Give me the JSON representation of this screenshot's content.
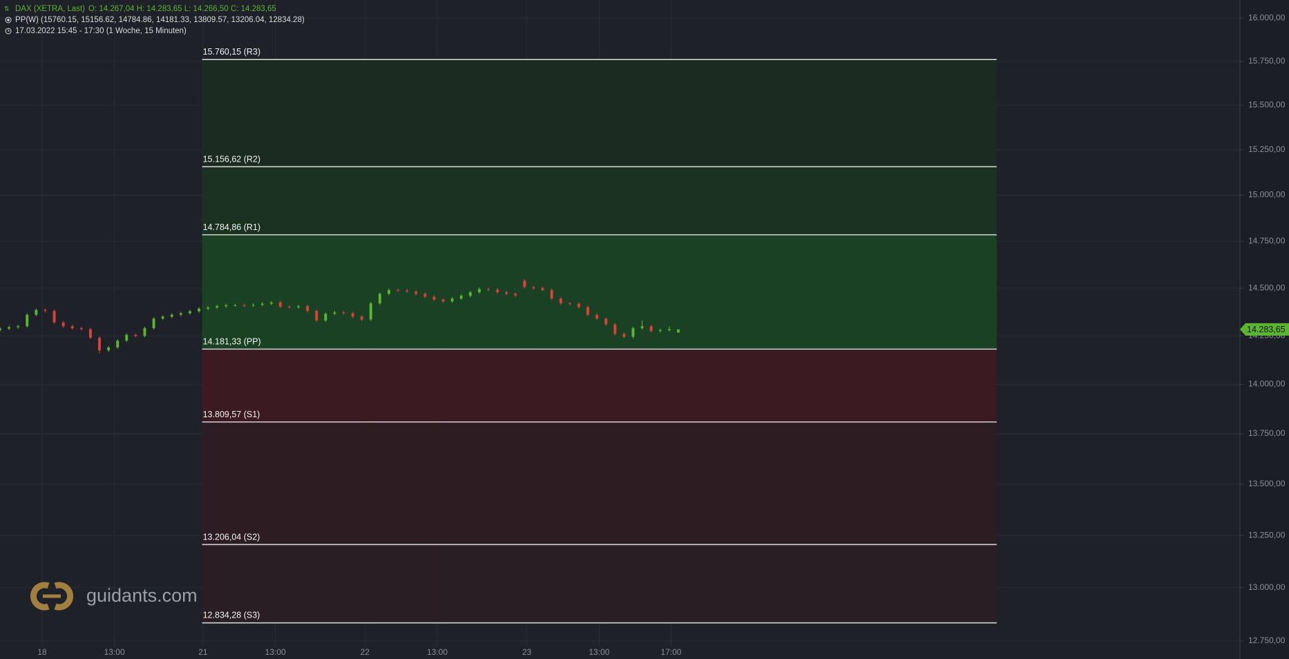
{
  "chart_data": {
    "type": "candlestick",
    "title": "DAX (XETRA, Last)",
    "ohlc_text": "O: 14.267,04  H: 14.283,65  L: 14.266,50  C: 14.283,65",
    "indicator_text": "PP(W)  (15760.15, 15156.62, 14784.86, 14181.33, 13809.57, 13206.04, 12834.28)",
    "period_text": "17.03.2022 15:45 - 17:30   (1 Woche, 15 Minuten)",
    "watermark": "guidants.com",
    "log_scale": true,
    "grid": true,
    "up_color": "#5cb531",
    "down_color": "#d9433b",
    "xlim": [
      0,
      274.2
    ],
    "ylim": [
      12724,
      16106
    ],
    "xticks": [
      {
        "value": 9.3,
        "label": "18"
      },
      {
        "value": 25.3,
        "label": "13:00"
      },
      {
        "value": 44.9,
        "label": "21"
      },
      {
        "value": 60.9,
        "label": "13:00"
      },
      {
        "value": 80.7,
        "label": "22"
      },
      {
        "value": 96.7,
        "label": "13:00"
      },
      {
        "value": 116.5,
        "label": "23"
      },
      {
        "value": 132.5,
        "label": "13:00"
      },
      {
        "value": 148.4,
        "label": "17:00"
      }
    ],
    "yticks": [
      {
        "value": 16000,
        "label": "16.000,00"
      },
      {
        "value": 15750,
        "label": "15.750,00"
      },
      {
        "value": 15500,
        "label": "15.500,00"
      },
      {
        "value": 15250,
        "label": "15.250,00"
      },
      {
        "value": 15000,
        "label": "15.000,00"
      },
      {
        "value": 14750,
        "label": "14.750,00"
      },
      {
        "value": 14500,
        "label": "14.500,00"
      },
      {
        "value": 14250,
        "label": "14.250,00"
      },
      {
        "value": 14000,
        "label": "14.000,00"
      },
      {
        "value": 13750,
        "label": "13.750,00"
      },
      {
        "value": 13500,
        "label": "13.500,00"
      },
      {
        "value": 13250,
        "label": "13.250,00"
      },
      {
        "value": 13000,
        "label": "13.000,00"
      },
      {
        "value": 12750,
        "label": "12.750,00"
      }
    ],
    "x": [
      0,
      2,
      4,
      6,
      8,
      10,
      12,
      14,
      16,
      18,
      20,
      22,
      24,
      26,
      28,
      30,
      32,
      34,
      36,
      38,
      40,
      42,
      44,
      46,
      48,
      50,
      52,
      54,
      56,
      58,
      60,
      62,
      64,
      66,
      68,
      70,
      72,
      74,
      76,
      78,
      80,
      82,
      84,
      86,
      88,
      90,
      92,
      94,
      96,
      98,
      100,
      102,
      104,
      106,
      108,
      110,
      112,
      114,
      116,
      118,
      120,
      122,
      124,
      126,
      128,
      130,
      132,
      134,
      136,
      138,
      140,
      142,
      144,
      146,
      148,
      150
    ],
    "open": [
      14280,
      14288,
      14295,
      14300,
      14360,
      14385,
      14380,
      14320,
      14300,
      14290,
      14285,
      14240,
      14175,
      14190,
      14225,
      14255,
      14250,
      14290,
      14340,
      14350,
      14360,
      14368,
      14378,
      14392,
      14398,
      14405,
      14410,
      14410,
      14408,
      14412,
      14418,
      14425,
      14402,
      14400,
      14405,
      14380,
      14330,
      14365,
      14372,
      14368,
      14350,
      14335,
      14420,
      14470,
      14490,
      14488,
      14482,
      14470,
      14455,
      14440,
      14430,
      14445,
      14460,
      14478,
      14495,
      14492,
      14478,
      14470,
      14540,
      14505,
      14500,
      14490,
      14445,
      14420,
      14418,
      14400,
      14360,
      14340,
      14310,
      14260,
      14245,
      14290,
      14300,
      14275,
      14280,
      14267.04
    ],
    "high": [
      14296,
      14303,
      14308,
      14368,
      14393,
      14393,
      14388,
      14328,
      14308,
      14298,
      14293,
      14248,
      14198,
      14233,
      14263,
      14263,
      14298,
      14348,
      14358,
      14368,
      14376,
      14386,
      14400,
      14406,
      14413,
      14418,
      14418,
      14418,
      14420,
      14426,
      14433,
      14433,
      14410,
      14413,
      14413,
      14388,
      14373,
      14380,
      14380,
      14376,
      14358,
      14428,
      14478,
      14498,
      14498,
      14496,
      14490,
      14478,
      14463,
      14448,
      14453,
      14468,
      14486,
      14503,
      14503,
      14500,
      14486,
      14478,
      14548,
      14513,
      14508,
      14498,
      14453,
      14428,
      14426,
      14408,
      14368,
      14348,
      14318,
      14268,
      14298,
      14330,
      14308,
      14288,
      14300,
      14283.65
    ],
    "low": [
      14272,
      14280,
      14287,
      14292,
      14352,
      14372,
      14312,
      14292,
      14282,
      14277,
      14232,
      14160,
      14167,
      14182,
      14217,
      14242,
      14242,
      14282,
      14332,
      14342,
      14352,
      14360,
      14370,
      14384,
      14390,
      14397,
      14402,
      14400,
      14400,
      14404,
      14410,
      14394,
      14392,
      14392,
      14372,
      14322,
      14322,
      14357,
      14360,
      14342,
      14327,
      14327,
      14412,
      14462,
      14480,
      14474,
      14462,
      14447,
      14432,
      14422,
      14422,
      14437,
      14452,
      14470,
      14484,
      14470,
      14462,
      14454,
      14497,
      14492,
      14482,
      14437,
      14412,
      14410,
      14392,
      14352,
      14332,
      14302,
      14252,
      14237,
      14237,
      14282,
      14267,
      14267,
      14272,
      14266.5
    ],
    "close": [
      14288,
      14295,
      14300,
      14360,
      14385,
      14380,
      14320,
      14300,
      14290,
      14285,
      14240,
      14175,
      14190,
      14225,
      14255,
      14250,
      14290,
      14340,
      14350,
      14360,
      14368,
      14378,
      14392,
      14398,
      14405,
      14410,
      14410,
      14408,
      14412,
      14418,
      14425,
      14402,
      14400,
      14405,
      14380,
      14330,
      14365,
      14372,
      14368,
      14350,
      14335,
      14420,
      14470,
      14490,
      14488,
      14482,
      14470,
      14455,
      14440,
      14430,
      14445,
      14460,
      14478,
      14495,
      14492,
      14478,
      14470,
      14462,
      14505,
      14500,
      14490,
      14445,
      14420,
      14418,
      14400,
      14360,
      14340,
      14310,
      14260,
      14245,
      14290,
      14300,
      14275,
      14280,
      14285,
      14283.65
    ],
    "current_price": {
      "value": 14283.65,
      "label": "14.283,65"
    },
    "pivot_x": [
      44.7,
      220.4
    ],
    "pivots": [
      {
        "value": 15760.15,
        "label": "15.760,15 (R3)"
      },
      {
        "value": 15156.62,
        "label": "15.156,62 (R2)"
      },
      {
        "value": 14784.86,
        "label": "14.784,86 (R1)"
      },
      {
        "value": 14181.33,
        "label": "14.181,33 (PP)"
      },
      {
        "value": 13809.57,
        "label": "13.809,57 (S1)"
      },
      {
        "value": 13206.04,
        "label": "13.206,04 (S2)"
      },
      {
        "value": 12834.28,
        "label": "12.834,28 (S3)"
      }
    ],
    "zone_colors": [
      "#1c2d22",
      "#1b3421",
      "#1a4423",
      "#3e1b21",
      "#2f1d22",
      "#2a1e23"
    ]
  }
}
